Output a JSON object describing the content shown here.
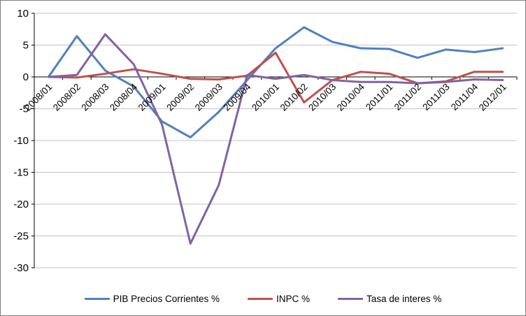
{
  "window": {
    "background": "#ffffff",
    "border_color": "#7f7f7f"
  },
  "chart_data": {
    "type": "line",
    "title": "",
    "xlabel": "",
    "ylabel": "",
    "categories": [
      "2008/01",
      "2008/02",
      "2008/03",
      "2008/04",
      "2009/01",
      "2009/02",
      "2009/03",
      "2009/04",
      "2010/01",
      "2010/02",
      "2010/03",
      "2010/04",
      "2011/01",
      "2011/02",
      "2011/03",
      "2011/04",
      "2012/01"
    ],
    "series": [
      {
        "name": "PIB Precios Corrientes %",
        "color": "#4F81BD",
        "values": [
          0,
          6.4,
          1.0,
          -1.5,
          -7.0,
          -9.5,
          -5.5,
          -0.5,
          4.5,
          7.8,
          5.5,
          4.5,
          4.4,
          3.0,
          4.3,
          3.9,
          4.5
        ]
      },
      {
        "name": "INPC %",
        "color": "#C0504D",
        "values": [
          0,
          -0.1,
          0.5,
          1.2,
          0.5,
          -0.3,
          -0.4,
          0.2,
          3.8,
          -4.0,
          -0.5,
          0.8,
          0.5,
          -1.0,
          -0.7,
          0.8,
          0.8
        ]
      },
      {
        "name": "Tasa de interes %",
        "color": "#8064A2",
        "values": [
          0,
          0.3,
          6.7,
          2.0,
          -7.5,
          -26.2,
          -17.0,
          0.3,
          -0.3,
          0.3,
          -0.5,
          -0.8,
          -0.8,
          -1.0,
          -0.8,
          -0.4,
          -0.5
        ]
      }
    ],
    "ylim": [
      -30,
      10
    ],
    "ytick_step": 5,
    "yticks": [
      10,
      5,
      0,
      -5,
      -10,
      -15,
      -20,
      -25,
      -30
    ],
    "grid": true,
    "gridline_color": "#C3C3C3",
    "axis_color": "#000000",
    "legend_position": "bottom"
  }
}
